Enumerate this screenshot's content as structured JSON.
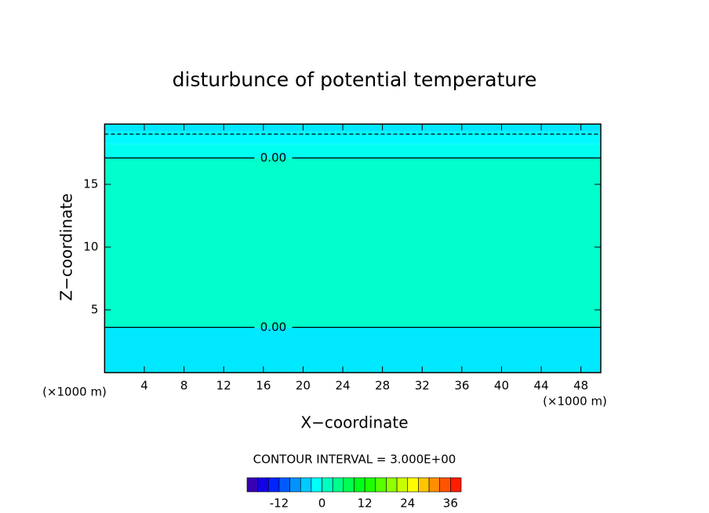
{
  "chart_data": {
    "type": "contour",
    "title": "disturbunce of potential temperature",
    "x_label": "X−coordinate",
    "y_label": "Z−coordinate",
    "x_unit_left": "(×1000 m)",
    "x_unit_right": "(×1000 m)",
    "xlim": [
      0,
      50
    ],
    "xticks": [
      4,
      8,
      12,
      16,
      20,
      24,
      28,
      32,
      36,
      40,
      44,
      48
    ],
    "ylim": [
      0,
      20
    ],
    "yticks": [
      5,
      10,
      15
    ],
    "bands": {
      "edges": [
        0,
        3.6,
        17.1,
        18.2,
        19.2,
        19.8
      ],
      "values": [
        -3,
        1,
        -1,
        -2,
        -3
      ]
    },
    "contours": [
      {
        "level": 0,
        "z": 17.1,
        "label": "0.00",
        "dashed": false
      },
      {
        "level": 0,
        "z": 3.6,
        "label": "0.00",
        "dashed": false
      },
      {
        "level": -3,
        "z": 19.0,
        "dashed": true
      }
    ],
    "contour_interval_label": "CONTOUR INTERVAL = 3.000E+00",
    "interval": 3,
    "clim": [
      -21,
      39
    ],
    "cticks": [
      -12,
      0,
      12,
      24,
      36
    ]
  }
}
